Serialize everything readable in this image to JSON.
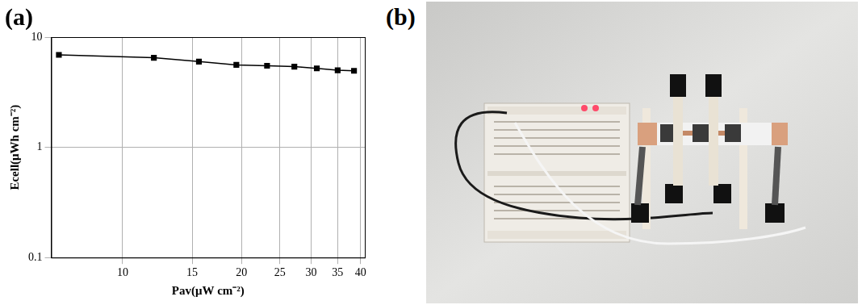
{
  "chart_data": {
    "type": "line",
    "x_label": "Pav(μW cm⁻²)",
    "y_label": "Ecell(μWh cm⁻²)",
    "x": [
      6.9,
      12,
      15.6,
      19.4,
      23.2,
      27.2,
      31,
      35,
      38.5
    ],
    "values": [
      6.9,
      6.5,
      6.0,
      5.6,
      5.5,
      5.4,
      5.2,
      5.0,
      4.95
    ],
    "color": "#000000",
    "marker": "square",
    "line_style": "solid",
    "log": true,
    "grid": true,
    "xlim": [
      6.6,
      41
    ],
    "xticks": [
      10,
      15,
      20,
      25,
      30,
      35,
      40
    ],
    "ylim": [
      0.1,
      10
    ],
    "yticks": [
      0.1,
      1,
      10
    ]
  },
  "panel_labels": [
    "(a)",
    "(b)"
  ]
}
